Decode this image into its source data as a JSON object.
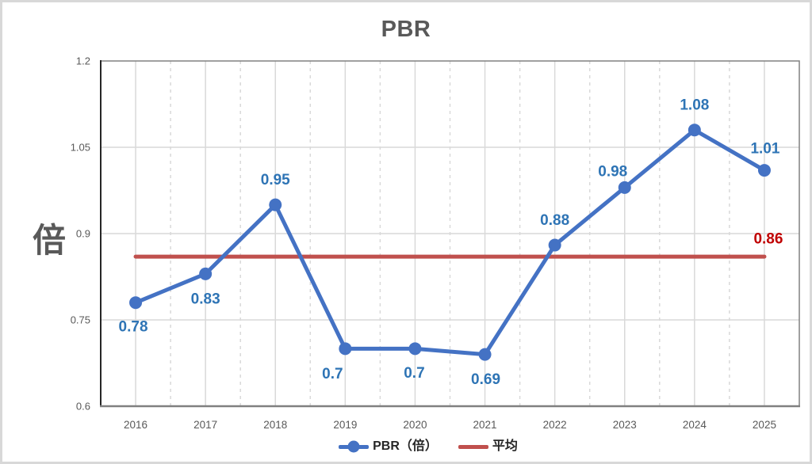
{
  "window": {
    "background": "#ffffff",
    "frame_border_color": "#d8d8d8"
  },
  "chart": {
    "title": "PBR",
    "colors": {
      "series_line": "#4472C4",
      "data_label": "#2E74B5",
      "average_line": "#C0504D",
      "average_label": "#C00000",
      "gridline": "#D9D9D9",
      "axis": "#808080",
      "axis_left": "#262626",
      "tick_text": "#595959",
      "title_text": "#595959",
      "legend_text": "#262626"
    }
  },
  "chart_data": {
    "type": "line",
    "title": "PBR",
    "ylabel": "倍",
    "xlabel": "",
    "categories": [
      "2016",
      "2017",
      "2018",
      "2019",
      "2020",
      "2021",
      "2022",
      "2023",
      "2024",
      "2025"
    ],
    "ylim": [
      0.6,
      1.2
    ],
    "yticks": [
      {
        "value": 0.6,
        "label": "0.6"
      },
      {
        "value": 0.75,
        "label": "0.75"
      },
      {
        "value": 0.9,
        "label": "0.9"
      },
      {
        "value": 1.05,
        "label": "1.05"
      },
      {
        "value": 1.2,
        "label": "1.2"
      }
    ],
    "grid": {
      "horizontal": "solid",
      "vertical_major": "solid",
      "vertical_minor": "dashed"
    },
    "legend_position": "bottom",
    "series": [
      {
        "name": "PBR（倍）",
        "type": "line",
        "color": "#4472C4",
        "marker": "circle",
        "values": [
          0.78,
          0.83,
          0.95,
          0.7,
          0.7,
          0.69,
          0.88,
          0.98,
          1.08,
          1.01
        ],
        "data_labels": [
          "0.78",
          "0.83",
          "0.95",
          "0.7",
          "0.7",
          "0.69",
          "0.88",
          "0.98",
          "1.08",
          "1.01"
        ],
        "label_offsets": [
          [
            -3,
            31
          ],
          [
            0,
            32
          ],
          [
            0,
            -31
          ],
          [
            -16,
            32
          ],
          [
            -1,
            31
          ],
          [
            1,
            32
          ],
          [
            0,
            -31
          ],
          [
            -15,
            -20
          ],
          [
            0,
            -31
          ],
          [
            1,
            -27
          ]
        ]
      },
      {
        "name": "平均",
        "type": "constant-line",
        "color": "#C0504D",
        "value": 0.86,
        "data_label": "0.86",
        "label_offset": [
          5,
          -22
        ]
      }
    ]
  }
}
